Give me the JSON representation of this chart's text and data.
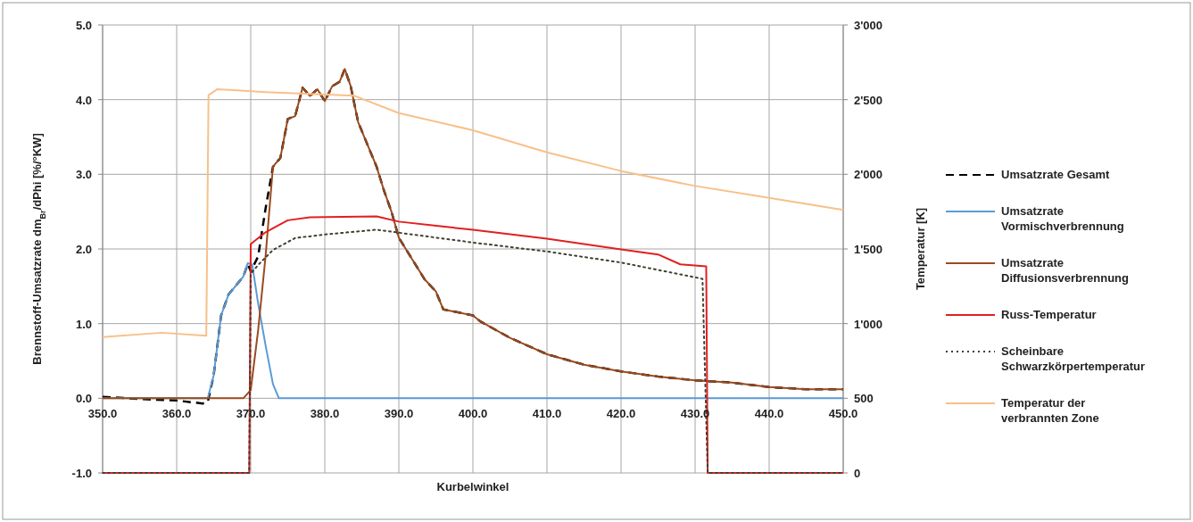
{
  "chart_data": {
    "type": "line",
    "xlabel": "Kurbelwinkel",
    "ylabel": "Brennstoff-Umsatzrate dm$_{Br}$/dPhi [%/°KW]",
    "y2label": "Temperatur  [K]",
    "xlim": [
      350,
      450
    ],
    "xticks": [
      {
        "value": 350,
        "label": "350.0"
      },
      {
        "value": 360,
        "label": "360.0"
      },
      {
        "value": 370,
        "label": "370.0"
      },
      {
        "value": 380,
        "label": "380.0"
      },
      {
        "value": 390,
        "label": "390.0"
      },
      {
        "value": 400,
        "label": "400.0"
      },
      {
        "value": 410,
        "label": "410.0"
      },
      {
        "value": 420,
        "label": "420.0"
      },
      {
        "value": 430,
        "label": "430.0"
      },
      {
        "value": 440,
        "label": "440.0"
      },
      {
        "value": 450,
        "label": "450.0"
      }
    ],
    "ylim": [
      -1,
      5
    ],
    "yticks": [
      {
        "value": -1,
        "label": "-1.0"
      },
      {
        "value": 0,
        "label": "0.0"
      },
      {
        "value": 1,
        "label": "1.0"
      },
      {
        "value": 2,
        "label": "2.0"
      },
      {
        "value": 3,
        "label": "3.0"
      },
      {
        "value": 4,
        "label": "4.0"
      },
      {
        "value": 5,
        "label": "5.0"
      }
    ],
    "y2lim": [
      0,
      3000
    ],
    "y2ticks": [
      0,
      500,
      {
        "value": 1000,
        "label": "1'000"
      },
      {
        "value": 1500,
        "label": "1'500"
      },
      {
        "value": 2000,
        "label": "2'000"
      },
      {
        "value": 2500,
        "label": "2'500"
      },
      {
        "value": 3000,
        "label": "3'000"
      }
    ],
    "grid": true,
    "legend": "right",
    "series": [
      {
        "name": "Umsatzrate Gesamt",
        "color": "#000000",
        "line_style": "dashed",
        "x": [
          350,
          355,
          360,
          363.5,
          364.2,
          365,
          366,
          367,
          368,
          369,
          369.6,
          370,
          371,
          372,
          373,
          374,
          375,
          376,
          377,
          378,
          379,
          380,
          381,
          382,
          382.7,
          383.5,
          384.5,
          386,
          387,
          388,
          389,
          390,
          392,
          393.5,
          395,
          396,
          400,
          401,
          405,
          410,
          415,
          420,
          425,
          430,
          435,
          440,
          445,
          450
        ],
        "values": [
          0.02,
          -0.01,
          -0.03,
          -0.07,
          -0.05,
          0.31,
          1.11,
          1.39,
          1.51,
          1.63,
          1.8,
          1.7,
          1.9,
          2.54,
          3.1,
          3.22,
          3.74,
          3.78,
          4.16,
          4.05,
          4.14,
          3.98,
          4.18,
          4.24,
          4.41,
          4.18,
          3.7,
          3.34,
          3.1,
          2.78,
          2.5,
          2.15,
          1.83,
          1.59,
          1.43,
          1.19,
          1.11,
          1.03,
          0.81,
          0.59,
          0.45,
          0.36,
          0.29,
          0.24,
          0.21,
          0.15,
          0.12,
          0.12
        ]
      },
      {
        "name": "Umsatzrate Vormischverbrennung",
        "color": "#5b9bd5",
        "line_style": "solid",
        "x": [
          350,
          364.2,
          365,
          366,
          367,
          368,
          369,
          369.6,
          370.2,
          371,
          372,
          373,
          373.8,
          450
        ],
        "values": [
          0,
          0,
          0.31,
          1.11,
          1.39,
          1.51,
          1.63,
          1.81,
          1.79,
          1.27,
          0.71,
          0.19,
          0,
          0
        ]
      },
      {
        "name": "Umsatzrate Diffusionsverbrennung",
        "color": "#9c4a1e",
        "line_style": "solid",
        "x": [
          350,
          369,
          370,
          371,
          372,
          373,
          374,
          375,
          376,
          377,
          378,
          379,
          380,
          381,
          382,
          382.7,
          383.5,
          384.5,
          386,
          387,
          388,
          389,
          390,
          392,
          393.5,
          395,
          396,
          400,
          401,
          405,
          410,
          415,
          420,
          425,
          430,
          435,
          440,
          445,
          450
        ],
        "values": [
          0,
          0,
          0.11,
          0.91,
          1.9,
          3.1,
          3.22,
          3.74,
          3.78,
          4.16,
          4.05,
          4.14,
          3.98,
          4.18,
          4.24,
          4.41,
          4.18,
          3.7,
          3.34,
          3.1,
          2.78,
          2.5,
          2.15,
          1.83,
          1.59,
          1.43,
          1.19,
          1.11,
          1.03,
          0.81,
          0.59,
          0.45,
          0.36,
          0.29,
          0.24,
          0.21,
          0.15,
          0.12,
          0.12
        ]
      },
      {
        "name": "Russ-Temperatur",
        "color": "#e02020",
        "line_style": "solid",
        "axis": "y2",
        "x": [
          350,
          369.8,
          370,
          372,
          375,
          378,
          387,
          390,
          400,
          410,
          420,
          425,
          428,
          431.5,
          431.7,
          450
        ],
        "values": [
          0,
          0,
          1533,
          1612,
          1692,
          1712,
          1718,
          1683,
          1628,
          1569,
          1497,
          1463,
          1397,
          1383,
          0,
          0
        ]
      },
      {
        "name": "Scheinbare Schwarzkörpertemperatur",
        "color": "#404030",
        "line_style": "dotted",
        "axis": "y2",
        "x": [
          350,
          369.8,
          370,
          371,
          373,
          376,
          380,
          387,
          390,
          400,
          410,
          420,
          431,
          431.7,
          450
        ],
        "values": [
          0,
          0,
          1333,
          1393,
          1493,
          1573,
          1597,
          1629,
          1609,
          1543,
          1483,
          1409,
          1300,
          0,
          0
        ]
      },
      {
        "name": "Temperatur der verbrannten Zone",
        "color": "#f8c08a",
        "line_style": "solid",
        "axis": "y2",
        "x": [
          350,
          358,
          364,
          364.3,
          365.5,
          372,
          384,
          390,
          400,
          410,
          420,
          430,
          440,
          450
        ],
        "values": [
          910,
          939,
          919,
          2530,
          2570,
          2550,
          2526,
          2410,
          2295,
          2147,
          2022,
          1922,
          1842,
          1762
        ]
      }
    ]
  }
}
